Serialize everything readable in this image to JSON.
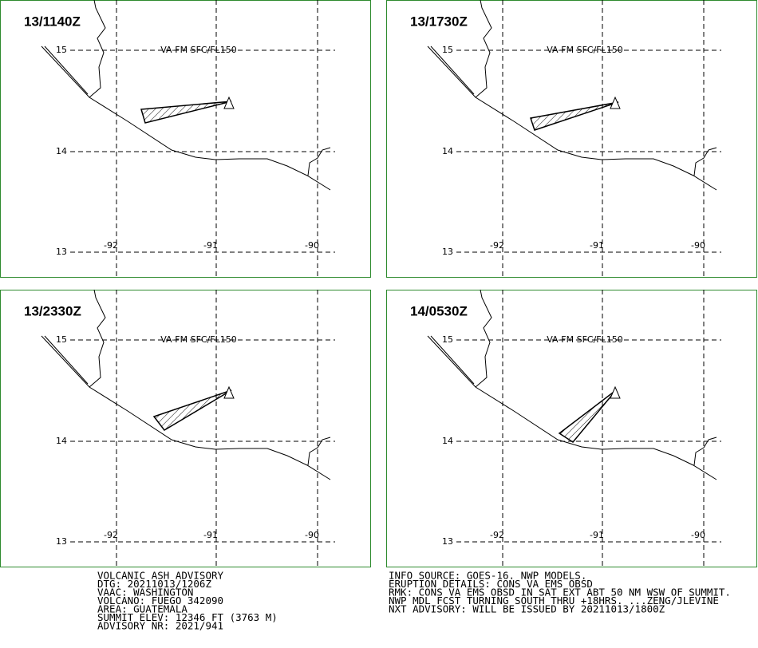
{
  "panels": [
    {
      "time": "13/1140Z"
    },
    {
      "time": "13/1730Z"
    },
    {
      "time": "13/2330Z"
    },
    {
      "time": "14/0530Z"
    }
  ],
  "lat_labels": [
    "15",
    "14",
    "13"
  ],
  "lon_labels": [
    "-92",
    "-91",
    "-90"
  ],
  "layer_label": "VA-FM SFC/FL150",
  "advisory_left": [
    "VOLCANIC ASH ADVISORY",
    "DTG: 20211013/1206Z",
    "VAAC: WASHINGTON",
    "VOLCANO: FUEGO 342090",
    "AREA: GUATEMALA",
    "SUMMIT ELEV: 12346 FT (3763 M)",
    "ADVISORY NR: 2021/941"
  ],
  "advisory_right": [
    "INFO SOURCE: GOES-16. NWP MODELS.",
    "ERUPTION DETAILS: CONS VA EMS OBSD",
    "RMK: CONS VA EMS OBSD IN SAT EXT ABT 50 NM WSW OF SUMMIT.",
    "NWP MDL FCST TURNING SOUTH THRU +18HRS. ...ZENG/JLEVINE",
    "NXT ADVISORY: WILL BE ISSUED BY 20211013/1800Z"
  ]
}
